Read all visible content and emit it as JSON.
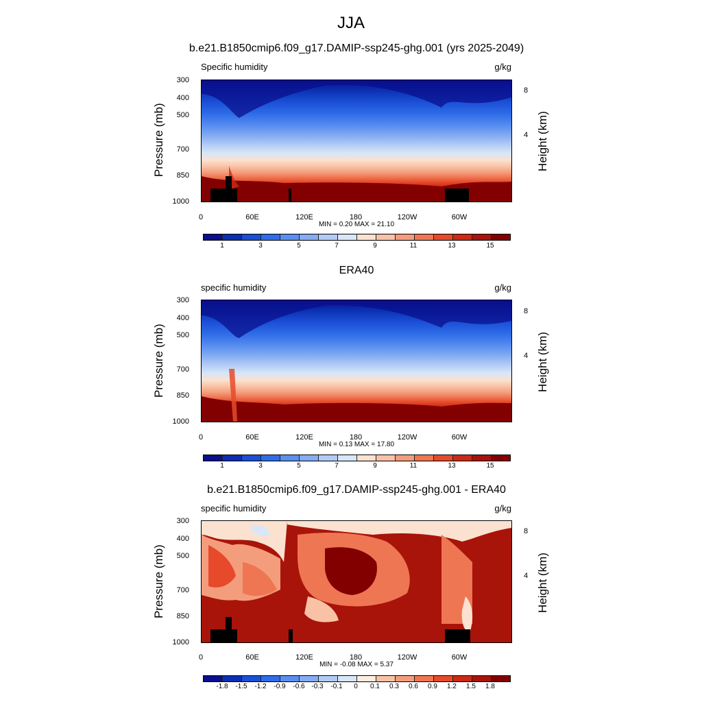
{
  "main_title": "JJA",
  "panels": [
    {
      "title": "b.e21.B1850cmip6.f09_g17.DAMIP-ssp245-ghg.001 (yrs 2025-2049)",
      "var_left": "Specific humidity",
      "var_right": "g/kg",
      "ylabel": "Pressure (mb)",
      "right_label": "Height (km)",
      "y_ticks": [
        "300",
        "400",
        "500",
        "700",
        "850",
        "1000"
      ],
      "right_ticks": [
        "8",
        "4"
      ],
      "x_ticks": [
        "0",
        "60E",
        "120E",
        "180",
        "120W",
        "60W"
      ],
      "minmax": "MIN =   0.20  MAX =  21.10",
      "colorbar_labels": [
        "1",
        "3",
        "5",
        "7",
        "9",
        "11",
        "13",
        "15"
      ]
    },
    {
      "title": "ERA40",
      "var_left": "specific humidity",
      "var_right": "g/kg",
      "ylabel": "Pressure (mb)",
      "right_label": "Height (km)",
      "y_ticks": [
        "300",
        "400",
        "500",
        "700",
        "850",
        "1000"
      ],
      "right_ticks": [
        "8",
        "4"
      ],
      "x_ticks": [
        "0",
        "60E",
        "120E",
        "180",
        "120W",
        "60W"
      ],
      "minmax": "MIN =   0.13  MAX =  17.80",
      "colorbar_labels": [
        "1",
        "3",
        "5",
        "7",
        "9",
        "11",
        "13",
        "15"
      ]
    },
    {
      "title": "b.e21.B1850cmip6.f09_g17.DAMIP-ssp245-ghg.001 - ERA40",
      "var_left": "specific humidity",
      "var_right": "g/kg",
      "ylabel": "Pressure (mb)",
      "right_label": "Height (km)",
      "y_ticks": [
        "300",
        "400",
        "500",
        "700",
        "850",
        "1000"
      ],
      "right_ticks": [
        "8",
        "4"
      ],
      "x_ticks": [
        "0",
        "60E",
        "120E",
        "180",
        "120W",
        "60W"
      ],
      "minmax": "MIN =  -0.08  MAX =   5.37",
      "colorbar_labels": [
        "-1.8",
        "-1.5",
        "-1.2",
        "-0.9",
        "-0.6",
        "-0.3",
        "-0.1",
        "0",
        "0.1",
        "0.3",
        "0.6",
        "0.9",
        "1.2",
        "1.5",
        "1.8"
      ]
    }
  ],
  "colors": {
    "sequential": [
      "#0a0f8c",
      "#0b2fb0",
      "#1a4fd6",
      "#2f6de8",
      "#5a8ff0",
      "#86acf2",
      "#b1cbf5",
      "#d8e6f7",
      "#fbe1cf",
      "#f9c2a6",
      "#f49d7c",
      "#ef7652",
      "#e64a2a",
      "#cc2a14",
      "#a8140a",
      "#830000"
    ],
    "diverging": [
      "#0a0f8c",
      "#0b2fb0",
      "#1a4fd6",
      "#2f6de8",
      "#5a8ff0",
      "#86acf2",
      "#b1cbf5",
      "#d8e6f7",
      "#fdecdf",
      "#f9c2a6",
      "#f49d7c",
      "#ef7652",
      "#e64a2a",
      "#cc2a14",
      "#a8140a",
      "#830000"
    ],
    "topography": "#000000"
  },
  "chart_data": [
    {
      "type": "heatmap",
      "title": "b.e21.B1850cmip6.f09_g17.DAMIP-ssp245-ghg.001 (yrs 2025-2049)",
      "variable": "Specific humidity",
      "units": "g/kg",
      "x": [
        0,
        60,
        120,
        180,
        240,
        300
      ],
      "x_tick_labels": [
        "0",
        "60E",
        "120E",
        "180",
        "120W",
        "60W"
      ],
      "xlim": [
        0,
        360
      ],
      "y": [
        300,
        400,
        500,
        700,
        850,
        1000
      ],
      "ylim": [
        1000,
        300
      ],
      "ylabel": "Pressure (mb)",
      "right_axis": {
        "label": "Height (km)",
        "ticks": [
          8,
          4
        ]
      },
      "levels": [
        1,
        3,
        5,
        7,
        9,
        11,
        13,
        15
      ],
      "min": 0.2,
      "max": 21.1,
      "season": "JJA"
    },
    {
      "type": "heatmap",
      "title": "ERA40",
      "variable": "specific humidity",
      "units": "g/kg",
      "x": [
        0,
        60,
        120,
        180,
        240,
        300
      ],
      "x_tick_labels": [
        "0",
        "60E",
        "120E",
        "180",
        "120W",
        "60W"
      ],
      "xlim": [
        0,
        360
      ],
      "y": [
        300,
        400,
        500,
        700,
        850,
        1000
      ],
      "ylim": [
        1000,
        300
      ],
      "ylabel": "Pressure (mb)",
      "right_axis": {
        "label": "Height (km)",
        "ticks": [
          8,
          4
        ]
      },
      "levels": [
        1,
        3,
        5,
        7,
        9,
        11,
        13,
        15
      ],
      "min": 0.13,
      "max": 17.8
    },
    {
      "type": "heatmap",
      "title": "b.e21.B1850cmip6.f09_g17.DAMIP-ssp245-ghg.001 - ERA40",
      "variable": "specific humidity",
      "units": "g/kg",
      "x": [
        0,
        60,
        120,
        180,
        240,
        300
      ],
      "x_tick_labels": [
        "0",
        "60E",
        "120E",
        "180",
        "120W",
        "60W"
      ],
      "xlim": [
        0,
        360
      ],
      "y": [
        300,
        400,
        500,
        700,
        850,
        1000
      ],
      "ylim": [
        1000,
        300
      ],
      "ylabel": "Pressure (mb)",
      "right_axis": {
        "label": "Height (km)",
        "ticks": [
          8,
          4
        ]
      },
      "levels": [
        -1.8,
        -1.5,
        -1.2,
        -0.9,
        -0.6,
        -0.3,
        -0.1,
        0,
        0.1,
        0.3,
        0.6,
        0.9,
        1.2,
        1.5,
        1.8
      ],
      "min": -0.08,
      "max": 5.37
    }
  ]
}
